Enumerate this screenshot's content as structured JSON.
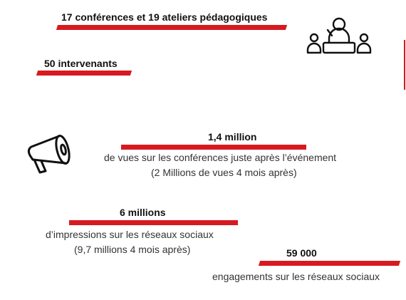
{
  "stats": {
    "conferences": "17 conférences et 19 ateliers pédagogiques",
    "speakers": "50 intervenants",
    "views_value": "1,4 million",
    "views_desc": "de vues sur les conférences juste après l’événement",
    "views_note": "(2 Millions de vues 4 mois après)",
    "impressions_value": "6 millions",
    "impressions_desc": "d’impressions sur les réseaux sociaux",
    "impressions_note": "(9,7 millions 4 mois après)",
    "engagements_value": "59 000",
    "engagements_desc": "engagements sur les réseaux sociaux"
  },
  "colors": {
    "accent": "#d71a1f",
    "text": "#1a1a1a"
  },
  "icons": {
    "meeting": "conference-meeting-icon",
    "megaphone": "megaphone-icon"
  }
}
